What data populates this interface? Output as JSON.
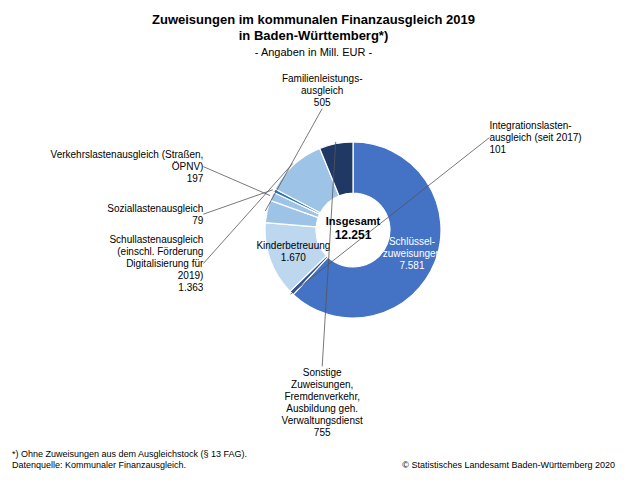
{
  "chart_data": {
    "type": "pie",
    "title": "Zuweisungen im kommunalen Finanzausgleich 2019\nin Baden-Württemberg*)",
    "subtitle": "- Angaben in Mill. EUR -",
    "categories": [
      "Schlüssel-\nzuweisungen",
      "Integrationslasten-\nausgleich (seit 2017)",
      "Kinderbetreuung",
      "Familienleistungs-\nausgleich",
      "Verkehrslastenausgleich (Straßen,\nÖPNV)",
      "Soziallastenausgleich",
      "Schullastenausgleich\n(einschl. Förderung\nDigitalisierung für\n2019)",
      "Sonstige\nZuweisungen,\nFremdenverkehr,\nAusbildung geh.\nVerwaltungsdienst"
    ],
    "values": [
      7581,
      101,
      1670,
      505,
      197,
      79,
      1363,
      755
    ],
    "value_labels": [
      "7.581",
      "101",
      "1.670",
      "505",
      "197",
      "79",
      "1.363",
      "755"
    ],
    "colors": [
      "#4472c4",
      "#2f5496",
      "#bdd7ee",
      "#9dc3e6",
      "#9dc3e6",
      "#2e75b6",
      "#9dc3e6",
      "#1f3864"
    ],
    "data_labels": true,
    "annotations": [
      "Insgesamt",
      "12.251",
      "*) Ohne Zuweisungen aus dem Ausgleichstock (§ 13 FAG).",
      "Datenquelle: Kommunaler Finanzausgleich.",
      "© Statistisches Landesamt Baden-Württemberg 2020"
    ]
  }
}
